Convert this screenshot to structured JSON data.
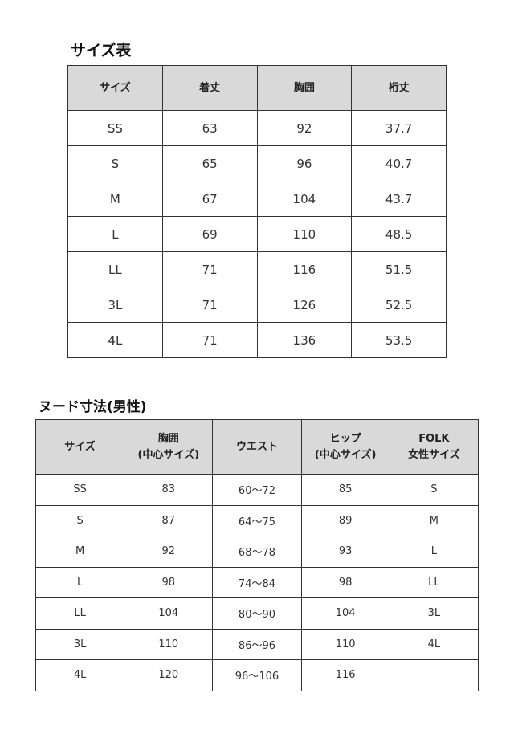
{
  "size_table": {
    "title": "サイズ表",
    "headers": [
      "サイズ",
      "着丈",
      "胸囲",
      "裄丈"
    ],
    "rows": [
      [
        "SS",
        "63",
        "92",
        "37.7"
      ],
      [
        "S",
        "65",
        "96",
        "40.7"
      ],
      [
        "M",
        "67",
        "104",
        "43.7"
      ],
      [
        "L",
        "69",
        "110",
        "48.5"
      ],
      [
        "LL",
        "71",
        "116",
        "51.5"
      ],
      [
        "3L",
        "71",
        "126",
        "52.5"
      ],
      [
        "4L",
        "71",
        "136",
        "53.5"
      ]
    ]
  },
  "nude_table": {
    "title": "ヌード寸法(男性)",
    "headers": [
      [
        "サイズ"
      ],
      [
        "胸囲",
        "(中心サイズ)"
      ],
      [
        "ウエスト"
      ],
      [
        "ヒップ",
        "(中心サイズ)"
      ],
      [
        "FOLK",
        "女性サイズ"
      ]
    ],
    "rows": [
      [
        "SS",
        "83",
        "60〜72",
        "85",
        "S"
      ],
      [
        "S",
        "87",
        "64〜75",
        "89",
        "M"
      ],
      [
        "M",
        "92",
        "68〜78",
        "93",
        "L"
      ],
      [
        "L",
        "98",
        "74〜84",
        "98",
        "LL"
      ],
      [
        "LL",
        "104",
        "80〜90",
        "104",
        "3L"
      ],
      [
        "3L",
        "110",
        "86〜96",
        "110",
        "4L"
      ],
      [
        "4L",
        "120",
        "96〜106",
        "116",
        "-"
      ]
    ]
  }
}
